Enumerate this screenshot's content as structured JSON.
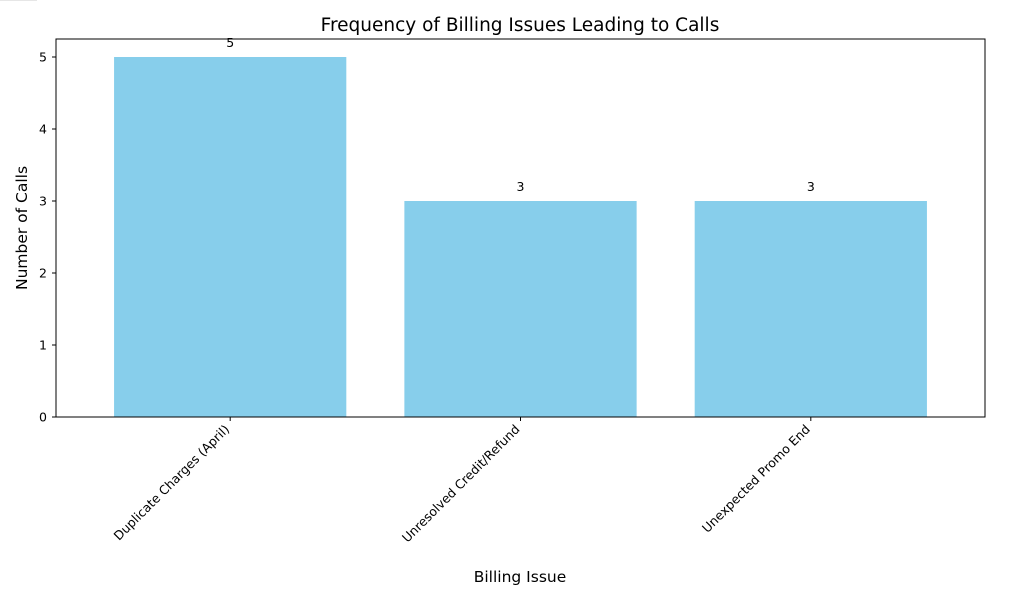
{
  "chart_data": {
    "type": "bar",
    "title": "Frequency of Billing Issues Leading to Calls",
    "xlabel": "Billing Issue",
    "ylabel": "Number of Calls",
    "categories": [
      "Duplicate Charges (April)",
      "Unresolved Credit/Refund",
      "Unexpected Promo End"
    ],
    "values": [
      5,
      3,
      3
    ],
    "value_labels": [
      "5",
      "3",
      "3"
    ],
    "ylim": [
      0,
      5.25
    ],
    "yticks": [
      0,
      1,
      2,
      3,
      4,
      5
    ],
    "grid": false,
    "bar_color": "#87ceeb"
  }
}
